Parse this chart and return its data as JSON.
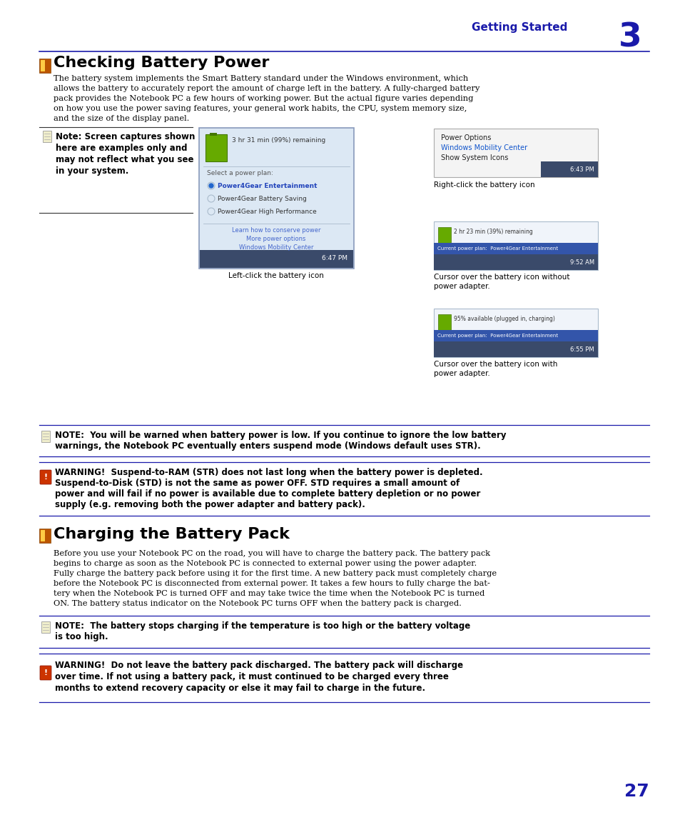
{
  "bg_color": "#ffffff",
  "header_color": "#1a1aaa",
  "text_color": "#000000",
  "line_color": "#1a1aaa",
  "title1": "Checking Battery Power",
  "title2": "Charging the Battery Pack",
  "header_label": "Getting Started",
  "header_number": "3",
  "page_number": "27",
  "para1": "The battery system implements the Smart Battery standard under the Windows environment, which allows the battery to accurately report the amount of charge left in the battery. A fully-charged battery pack provides the Notebook PC a few hours of working power. But the actual figure varies depending on how you use the power saving features, your general work habits, the CPU, system memory size, and the size of the display panel.",
  "note_box_lines": [
    "Note: Screen captures shown",
    "here are examples only and",
    "may not reflect what you see",
    "in your system."
  ],
  "note1": "NOTE:  You will be warned when battery power is low. If you continue to ignore the low battery warnings, the Notebook PC eventually enters suspend mode (Windows default uses STR).",
  "warning1_lines": [
    "WARNING!  Suspend-to-RAM (STR) does not last long when the battery power is depleted.",
    "Suspend-to-Disk (STD) is not the same as power OFF. STD requires a small amount of",
    "power and will fail if no power is available due to complete battery depletion or no power",
    "supply (e.g. removing both the power adapter and battery pack)."
  ],
  "para2": "Before you use your Notebook PC on the road, you will have to charge the battery pack. The battery pack begins to charge as soon as the Notebook PC is connected to external power using the power adapter. Fully charge the battery pack before using it for the first time. A new battery pack must completely charge before the Notebook PC is disconnected from external power. It takes a few hours to fully charge the battery when the Notebook PC is turned OFF and may take twice the time when the Notebook PC is turned ON. The battery status indicator on the Notebook PC turns OFF when the battery pack is charged.",
  "note2_lines": [
    "NOTE:  The battery stops charging if the temperature is too high or the battery voltage",
    "is too high."
  ],
  "warning2_lines": [
    "WARNING!  Do not leave the battery pack discharged. The battery pack will discharge",
    "over time. If not using a battery pack, it must continued to be charged every three",
    "months to extend recovery capacity or else it may fail to charge in the future."
  ],
  "img_caption1": "Left-click the battery icon",
  "img_caption2": "Right-click the battery icon",
  "img_caption3a": "Cursor over the battery icon without",
  "img_caption3b": "power adapter.",
  "img_caption4a": "Cursor over the battery icon with",
  "img_caption4b": "power adapter."
}
